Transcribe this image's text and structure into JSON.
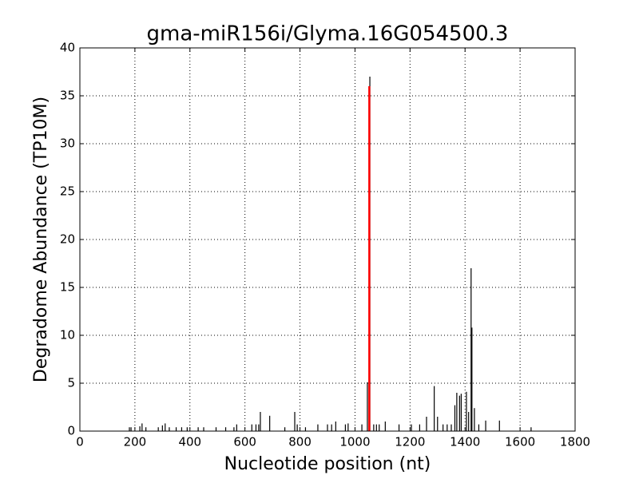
{
  "chart_data": {
    "type": "stem",
    "title": "gma-miR156i/Glyma.16G054500.3",
    "xlabel": "Nucleotide position (nt)",
    "ylabel": "Degradome Abundance (TP10M)",
    "x": [
      180,
      186,
      218,
      226,
      240,
      285,
      300,
      310,
      325,
      350,
      370,
      390,
      430,
      450,
      495,
      530,
      560,
      570,
      625,
      640,
      650,
      656,
      690,
      745,
      781,
      790,
      820,
      865,
      900,
      915,
      930,
      965,
      975,
      1025,
      1045,
      1054,
      1068,
      1078,
      1088,
      1110,
      1160,
      1205,
      1235,
      1260,
      1288,
      1300,
      1320,
      1335,
      1350,
      1363,
      1370,
      1380,
      1386,
      1405,
      1413,
      1422,
      1425,
      1434,
      1450,
      1475,
      1525,
      1640
    ],
    "values": [
      0.4,
      0.4,
      0.5,
      0.8,
      0.4,
      0.4,
      0.6,
      0.8,
      0.4,
      0.4,
      0.4,
      0.4,
      0.4,
      0.4,
      0.4,
      0.4,
      0.4,
      0.7,
      0.7,
      0.7,
      0.7,
      2.0,
      1.6,
      0.4,
      2.0,
      0.7,
      0.4,
      0.7,
      0.7,
      0.7,
      1.0,
      0.7,
      0.8,
      0.7,
      5.1,
      37.0,
      0.7,
      0.7,
      0.7,
      1.0,
      0.7,
      0.7,
      0.7,
      1.5,
      4.7,
      1.5,
      0.7,
      0.7,
      0.7,
      2.7,
      4.0,
      3.7,
      3.9,
      4.1,
      2.0,
      17.0,
      10.8,
      2.4,
      0.7,
      1.1,
      1.1,
      0.4
    ],
    "color": "#000000",
    "highlight_x": 1052,
    "highlight_value": 36,
    "highlight_color": "#ff0000",
    "xlim": [
      0,
      1800
    ],
    "ylim": [
      0,
      40
    ],
    "xticks": [
      0,
      200,
      400,
      600,
      800,
      1000,
      1200,
      1400,
      1600,
      1800
    ],
    "yticks": [
      0,
      5,
      10,
      15,
      20,
      25,
      30,
      35,
      40
    ],
    "grid": true
  }
}
